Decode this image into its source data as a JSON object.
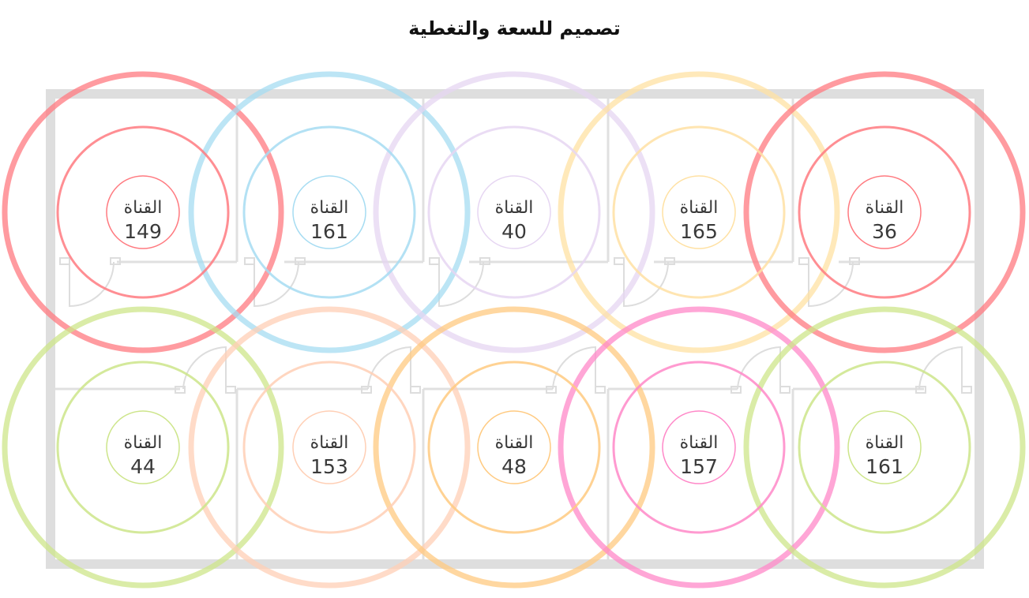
{
  "title": "تصميم للسعة والتغطية",
  "channel_label": "القناة",
  "colors": {
    "wall": "#dedede",
    "label_text": "#3a3a3a"
  },
  "access_points": [
    {
      "row": 0,
      "col": 0,
      "channel": "149",
      "color": "#ff7a80"
    },
    {
      "row": 0,
      "col": 1,
      "channel": "161",
      "color": "#a6dcf2"
    },
    {
      "row": 0,
      "col": 2,
      "channel": "40",
      "color": "#e6d6f2"
    },
    {
      "row": 0,
      "col": 3,
      "channel": "165",
      "color": "#ffe1a3"
    },
    {
      "row": 0,
      "col": 4,
      "channel": "36",
      "color": "#ff7a80"
    },
    {
      "row": 1,
      "col": 0,
      "channel": "44",
      "color": "#cde58a"
    },
    {
      "row": 1,
      "col": 1,
      "channel": "153",
      "color": "#ffcfb5"
    },
    {
      "row": 1,
      "col": 2,
      "channel": "48",
      "color": "#ffca80"
    },
    {
      "row": 1,
      "col": 3,
      "channel": "157",
      "color": "#ff88c8"
    },
    {
      "row": 1,
      "col": 4,
      "channel": "161",
      "color": "#cde58a"
    }
  ]
}
